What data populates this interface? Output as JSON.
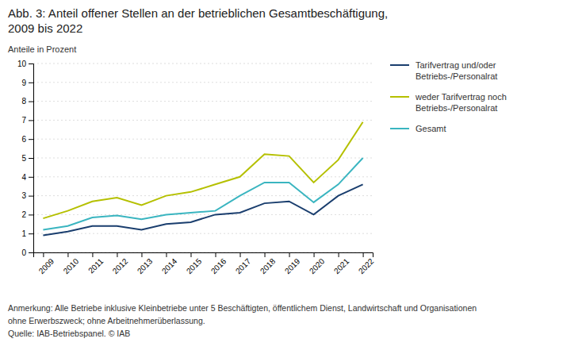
{
  "chart_data": {
    "type": "line",
    "title": "Abb. 3: Anteil offener Stellen an der betrieblichen Gesamtbeschäftigung,\n2009 bis 2022",
    "y_label": "Anteile in Prozent",
    "x": [
      2009,
      2010,
      2011,
      2012,
      2013,
      2014,
      2015,
      2016,
      2017,
      2018,
      2019,
      2020,
      2021,
      2022
    ],
    "series": [
      {
        "name": "Tarifvertrag und/oder\nBetriebs-/Personalrat",
        "color": "#1a3e6e",
        "values": [
          0.9,
          1.1,
          1.4,
          1.4,
          1.2,
          1.5,
          1.6,
          2.0,
          2.1,
          2.6,
          2.7,
          2.0,
          3.0,
          3.6
        ]
      },
      {
        "name": "weder Tarifvertrag noch\nBetriebs-/Personalrat",
        "color": "#b5c000",
        "values": [
          1.8,
          2.2,
          2.7,
          2.9,
          2.5,
          3.0,
          3.2,
          3.6,
          4.0,
          5.2,
          5.1,
          3.7,
          4.9,
          6.9
        ]
      },
      {
        "name": "Gesamt",
        "color": "#3ab5c0",
        "values": [
          1.2,
          1.4,
          1.85,
          1.95,
          1.75,
          2.0,
          2.1,
          2.2,
          3.0,
          3.7,
          3.7,
          2.65,
          3.6,
          5.0
        ]
      }
    ],
    "xlim": [
      2008.6,
      2022.4
    ],
    "xticks": [
      2009,
      2010,
      2011,
      2012,
      2013,
      2014,
      2015,
      2016,
      2017,
      2018,
      2019,
      2020,
      2021,
      2022
    ],
    "ylim": [
      0,
      10
    ],
    "yticks": [
      0,
      1,
      2,
      3,
      4,
      5,
      6,
      7,
      8,
      9,
      10
    ],
    "grid": true,
    "legend": "right",
    "annotations": [
      "Anmerkung: Alle Betriebe inklusive Kleinbetriebe unter 5 Beschäftigten, öffentlichem Dienst, Landwirtschaft und Organisationen",
      "ohne Erwerbszweck; ohne Arbeitnehmerüberlassung.",
      "Quelle: IAB-Betriebspanel. © IAB"
    ]
  }
}
